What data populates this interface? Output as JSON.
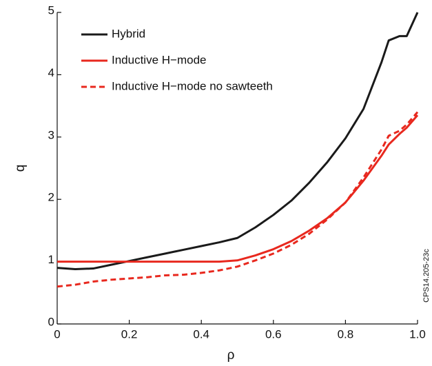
{
  "chart_data": {
    "type": "line",
    "xlabel": "ρ",
    "ylabel": "q",
    "annotation": "CPS14.205-23c",
    "x": [
      0,
      0.05,
      0.1,
      0.15,
      0.2,
      0.25,
      0.3,
      0.35,
      0.4,
      0.45,
      0.5,
      0.55,
      0.6,
      0.65,
      0.7,
      0.75,
      0.8,
      0.85,
      0.9,
      0.92,
      0.95,
      0.97,
      1.0
    ],
    "series": [
      {
        "name": "Hybrid",
        "color": "#1a1a1a",
        "linestyle": "solid",
        "values": [
          0.9,
          0.88,
          0.89,
          0.95,
          1.01,
          1.07,
          1.13,
          1.19,
          1.25,
          1.31,
          1.38,
          1.55,
          1.75,
          1.98,
          2.27,
          2.6,
          2.98,
          3.45,
          4.2,
          4.55,
          4.62,
          4.62,
          5.0
        ]
      },
      {
        "name": "Inductive H−mode",
        "color": "#e8281e",
        "linestyle": "solid",
        "values": [
          1.0,
          1.0,
          1.0,
          1.0,
          1.0,
          1.0,
          1.0,
          1.0,
          1.0,
          1.0,
          1.02,
          1.1,
          1.2,
          1.33,
          1.5,
          1.7,
          1.95,
          2.3,
          2.7,
          2.88,
          3.05,
          3.15,
          3.35
        ]
      },
      {
        "name": "Inductive H−mode no sawteeth",
        "color": "#e8281e",
        "linestyle": "dashed",
        "values": [
          0.6,
          0.63,
          0.68,
          0.71,
          0.73,
          0.75,
          0.78,
          0.79,
          0.82,
          0.86,
          0.92,
          1.02,
          1.13,
          1.27,
          1.45,
          1.68,
          1.95,
          2.35,
          2.8,
          3.02,
          3.1,
          3.2,
          3.4
        ]
      }
    ],
    "xlim": [
      0,
      1
    ],
    "xticks": [
      0,
      0.2,
      0.4,
      0.6,
      0.8,
      {
        "value": 1,
        "label": "1.0"
      }
    ],
    "ylim": [
      0,
      5
    ],
    "yticks": [
      0,
      1,
      2,
      3,
      4,
      5
    ],
    "legend": "upper left",
    "grid": false
  }
}
